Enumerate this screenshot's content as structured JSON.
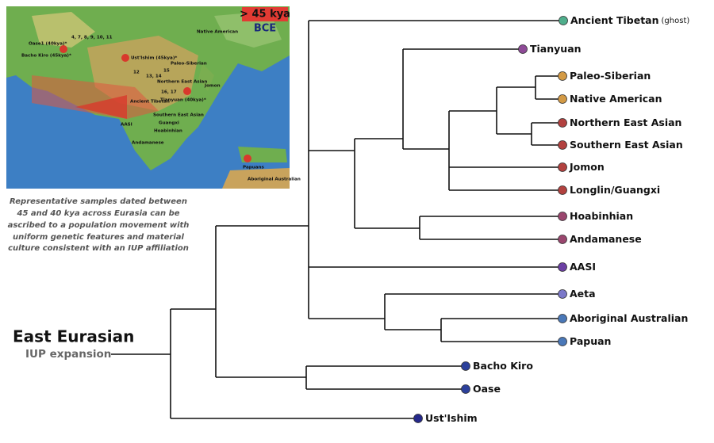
{
  "map": {
    "badge": "> 45 kya",
    "era": "BCE",
    "labels": [
      "Oase1 (40kya)*",
      "Bacho Kiro (45kya)*",
      "Ust'Ishim (45kya)*",
      "4, 7, 8, 9, 10, 11",
      "Native American",
      "Paleo-Siberian",
      "15",
      "12",
      "13, 14",
      "Northern East Asian",
      "Jomon",
      "16, 17",
      "Ancient Tibetan",
      "Tianyuan (40kya)*",
      "Southern East Asian",
      "AASI",
      "Guangxi",
      "Hoabinhian",
      "Andamanese",
      "Papuans",
      "Aboriginal Australian"
    ]
  },
  "caption": [
    "Representative samples dated between",
    "45 and 40 kya across Eurasia can be",
    "ascribed to a population movement with",
    "uniform genetic features and material",
    "culture consistent with an IUP affiliation"
  ],
  "root": {
    "title": "East Eurasian",
    "subtitle": "IUP expansion"
  },
  "leaves": [
    {
      "label": "Ancient Tibetan",
      "note": "(ghost)",
      "color": "#4fae8c"
    },
    {
      "label": "Tianyuan",
      "color": "#8e4a97"
    },
    {
      "label": "Paleo-Siberian",
      "color": "#d39a45"
    },
    {
      "label": "Native American",
      "color": "#d39a45"
    },
    {
      "label": "Northern East Asian",
      "color": "#b2413f"
    },
    {
      "label": "Southern East Asian",
      "color": "#b2413f"
    },
    {
      "label": "Jomon",
      "color": "#b2413f"
    },
    {
      "label": "Longlin/Guangxi",
      "color": "#b2413f"
    },
    {
      "label": "Hoabinhian",
      "color": "#9a466e"
    },
    {
      "label": "Andamanese",
      "color": "#9a466e"
    },
    {
      "label": "AASI",
      "color": "#6b3fa3"
    },
    {
      "label": "Aeta",
      "color": "#7b78c9"
    },
    {
      "label": "Aboriginal Australian",
      "color": "#4a78b8"
    },
    {
      "label": "Papuan",
      "color": "#4a78b8"
    },
    {
      "label": "Bacho Kiro",
      "color": "#2c409b"
    },
    {
      "label": "Oase",
      "color": "#2c409b"
    },
    {
      "label": "Ust'Ishim",
      "color": "#25298a"
    }
  ]
}
